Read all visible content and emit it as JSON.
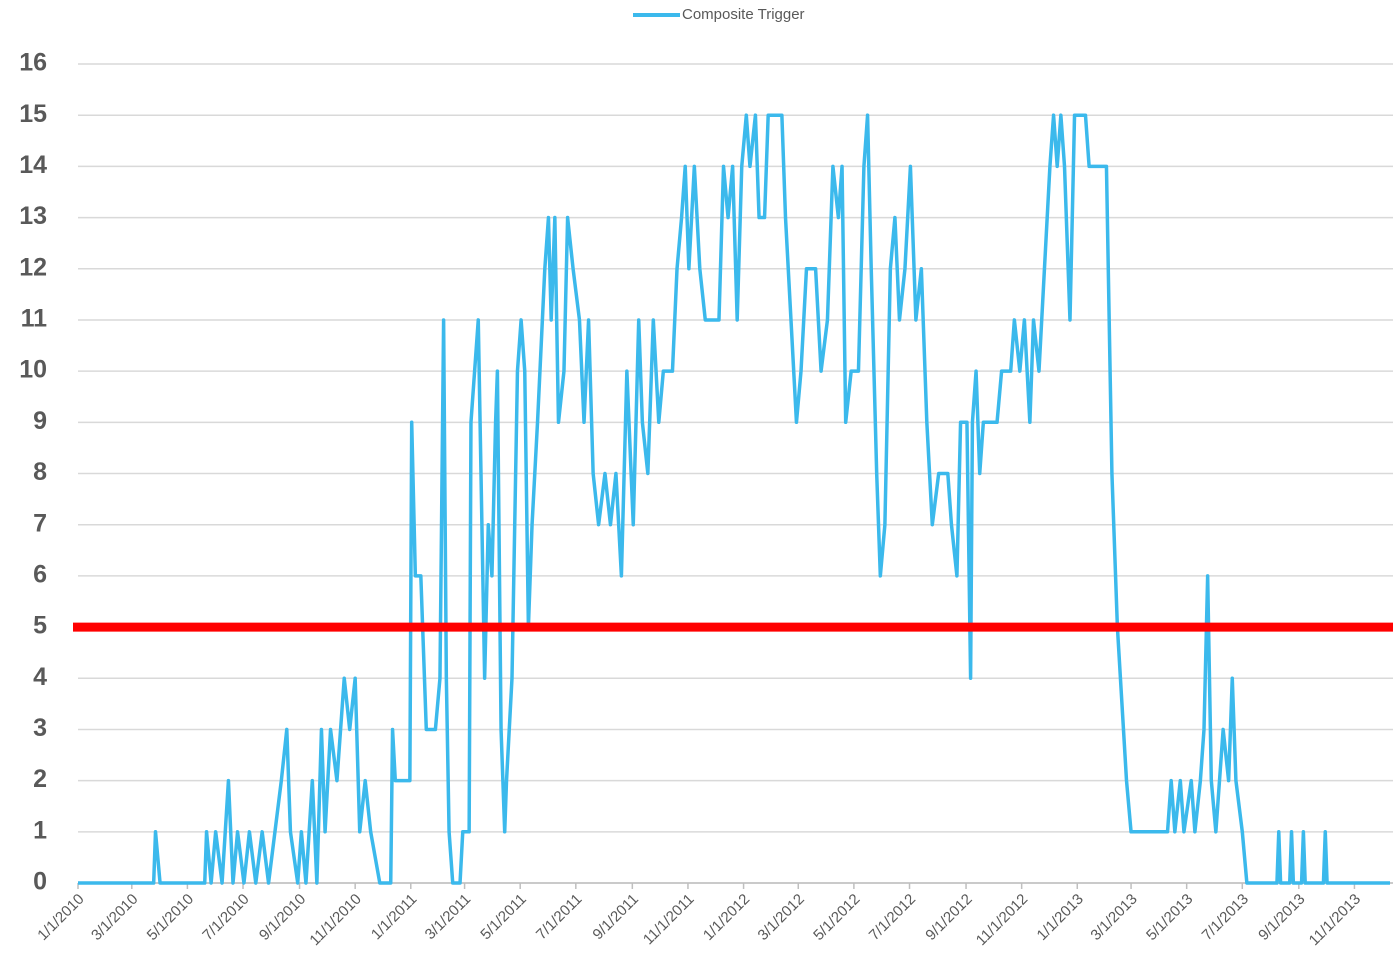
{
  "chart_data": {
    "type": "line",
    "legend": "top",
    "x": [
      "2010-01-01",
      "2010-03-25",
      "2010-03-27",
      "2010-04-01",
      "2010-05-20",
      "2010-05-22",
      "2010-05-27",
      "2010-06-01",
      "2010-06-08",
      "2010-06-15",
      "2010-06-20",
      "2010-06-25",
      "2010-07-02",
      "2010-07-08",
      "2010-07-15",
      "2010-07-22",
      "2010-07-29",
      "2010-08-05",
      "2010-08-12",
      "2010-08-18",
      "2010-08-22",
      "2010-08-30",
      "2010-09-03",
      "2010-09-08",
      "2010-09-15",
      "2010-09-20",
      "2010-09-25",
      "2010-09-29",
      "2010-10-05",
      "2010-10-12",
      "2010-10-20",
      "2010-10-26",
      "2010-11-01",
      "2010-11-06",
      "2010-11-12",
      "2010-11-18",
      "2010-11-28",
      "2010-12-10",
      "2010-12-12",
      "2010-12-15",
      "2010-12-31",
      "2011-01-02",
      "2011-01-06",
      "2011-01-12",
      "2011-01-18",
      "2011-01-28",
      "2011-02-02",
      "2011-02-06",
      "2011-02-09",
      "2011-02-12",
      "2011-02-16",
      "2011-02-24",
      "2011-02-27",
      "2011-03-06",
      "2011-03-08",
      "2011-03-12",
      "2011-03-16",
      "2011-03-19",
      "2011-03-23",
      "2011-03-27",
      "2011-03-31",
      "2011-04-04",
      "2011-04-06",
      "2011-04-10",
      "2011-04-14",
      "2011-04-16",
      "2011-04-22",
      "2011-04-28",
      "2011-05-02",
      "2011-05-06",
      "2011-05-10",
      "2011-05-14",
      "2011-05-20",
      "2011-05-28",
      "2011-06-01",
      "2011-06-04",
      "2011-06-08",
      "2011-06-12",
      "2011-06-18",
      "2011-06-22",
      "2011-06-28",
      "2011-07-05",
      "2011-07-10",
      "2011-07-15",
      "2011-07-20",
      "2011-07-26",
      "2011-08-02",
      "2011-08-08",
      "2011-08-14",
      "2011-08-20",
      "2011-08-26",
      "2011-09-02",
      "2011-09-08",
      "2011-09-12",
      "2011-09-18",
      "2011-09-24",
      "2011-09-30",
      "2011-10-05",
      "2011-10-15",
      "2011-10-20",
      "2011-10-25",
      "2011-10-29",
      "2011-11-02",
      "2011-11-08",
      "2011-11-14",
      "2011-11-20",
      "2011-12-05",
      "2011-12-10",
      "2011-12-15",
      "2011-12-20",
      "2011-12-25",
      "2011-12-30",
      "2012-01-04",
      "2012-01-08",
      "2012-01-14",
      "2012-01-18",
      "2012-01-24",
      "2012-01-28",
      "2012-02-12",
      "2012-02-16",
      "2012-02-22",
      "2012-02-28",
      "2012-03-04",
      "2012-03-10",
      "2012-03-20",
      "2012-03-26",
      "2012-04-02",
      "2012-04-08",
      "2012-04-14",
      "2012-04-18",
      "2012-04-22",
      "2012-04-28",
      "2012-05-06",
      "2012-05-12",
      "2012-05-16",
      "2012-05-20",
      "2012-05-26",
      "2012-05-30",
      "2012-06-04",
      "2012-06-10",
      "2012-06-15",
      "2012-06-20",
      "2012-06-26",
      "2012-07-02",
      "2012-07-08",
      "2012-07-14",
      "2012-07-20",
      "2012-07-26",
      "2012-08-02",
      "2012-08-12",
      "2012-08-16",
      "2012-08-22",
      "2012-08-26",
      "2012-09-02",
      "2012-09-06",
      "2012-09-08",
      "2012-09-12",
      "2012-09-16",
      "2012-09-20",
      "2012-10-05",
      "2012-10-10",
      "2012-10-20",
      "2012-10-24",
      "2012-10-30",
      "2012-11-04",
      "2012-11-10",
      "2012-11-14",
      "2012-11-20",
      "2012-11-26",
      "2012-12-02",
      "2012-12-06",
      "2012-12-10",
      "2012-12-14",
      "2012-12-18",
      "2012-12-24",
      "2012-12-29",
      "2013-01-10",
      "2013-01-14",
      "2013-02-02",
      "2013-02-08",
      "2013-02-14",
      "2013-02-24",
      "2013-03-01",
      "2013-04-10",
      "2013-04-14",
      "2013-04-18",
      "2013-04-24",
      "2013-04-28",
      "2013-05-06",
      "2013-05-10",
      "2013-05-16",
      "2013-05-20",
      "2013-05-24",
      "2013-05-28",
      "2013-06-02",
      "2013-06-10",
      "2013-06-16",
      "2013-06-20",
      "2013-06-24",
      "2013-07-01",
      "2013-07-06",
      "2013-08-08",
      "2013-08-10",
      "2013-08-12",
      "2013-08-22",
      "2013-08-24",
      "2013-08-26",
      "2013-09-04",
      "2013-09-06",
      "2013-09-08",
      "2013-09-28",
      "2013-09-30",
      "2013-10-02",
      "2013-12-10"
    ],
    "series": [
      {
        "name": "Composite Trigger",
        "color": "#3bb9ec",
        "values": [
          0,
          0,
          1,
          0,
          0,
          1,
          0,
          1,
          0,
          2,
          0,
          1,
          0,
          1,
          0,
          1,
          0,
          1,
          2,
          3,
          1,
          0,
          1,
          0,
          2,
          0,
          3,
          1,
          3,
          2,
          4,
          3,
          4,
          1,
          2,
          1,
          0,
          0,
          3,
          2,
          2,
          9,
          6,
          6,
          3,
          3,
          4,
          11,
          4,
          1,
          0,
          0,
          1,
          1,
          9,
          10,
          11,
          8,
          4,
          7,
          6,
          9,
          10,
          3,
          1,
          2,
          4,
          10,
          11,
          10,
          5,
          7,
          9,
          12,
          13,
          11,
          13,
          9,
          10,
          13,
          12,
          11,
          9,
          11,
          8,
          7,
          8,
          7,
          8,
          6,
          10,
          7,
          11,
          9,
          8,
          11,
          9,
          10,
          10,
          12,
          13,
          14,
          12,
          14,
          12,
          11,
          11,
          14,
          13,
          14,
          11,
          14,
          15,
          14,
          15,
          13,
          13,
          15,
          15,
          13,
          11,
          9,
          10,
          12,
          12,
          10,
          11,
          14,
          13,
          14,
          9,
          10,
          10,
          14,
          15,
          12,
          8,
          6,
          7,
          12,
          13,
          11,
          12,
          14,
          11,
          12,
          9,
          7,
          8,
          8,
          7,
          6,
          9,
          9,
          4,
          9,
          10,
          8,
          9,
          9,
          10,
          10,
          11,
          10,
          11,
          9,
          11,
          10,
          12,
          14,
          15,
          14,
          15,
          14,
          11,
          15,
          15,
          14,
          14,
          8,
          5,
          2,
          1,
          1,
          2,
          1,
          2,
          1,
          2,
          1,
          2,
          3,
          6,
          2,
          1,
          3,
          2,
          4,
          2,
          1,
          0,
          0,
          1,
          0,
          0,
          1,
          0,
          0,
          1,
          0,
          0,
          1,
          0,
          0
        ]
      }
    ],
    "xlim": [
      "2010-01-01",
      "2013-12-10"
    ],
    "xticks": [
      {
        "value": "2010-01-01",
        "label": "1/1/2010"
      },
      {
        "value": "2010-03-01",
        "label": "3/1/2010"
      },
      {
        "value": "2010-05-01",
        "label": "5/1/2010"
      },
      {
        "value": "2010-07-01",
        "label": "7/1/2010"
      },
      {
        "value": "2010-09-01",
        "label": "9/1/2010"
      },
      {
        "value": "2010-11-01",
        "label": "11/1/2010"
      },
      {
        "value": "2011-01-01",
        "label": "1/1/2011"
      },
      {
        "value": "2011-03-01",
        "label": "3/1/2011"
      },
      {
        "value": "2011-05-01",
        "label": "5/1/2011"
      },
      {
        "value": "2011-07-01",
        "label": "7/1/2011"
      },
      {
        "value": "2011-09-01",
        "label": "9/1/2011"
      },
      {
        "value": "2011-11-01",
        "label": "11/1/2011"
      },
      {
        "value": "2012-01-01",
        "label": "1/1/2012"
      },
      {
        "value": "2012-03-01",
        "label": "3/1/2012"
      },
      {
        "value": "2012-05-01",
        "label": "5/1/2012"
      },
      {
        "value": "2012-07-01",
        "label": "7/1/2012"
      },
      {
        "value": "2012-09-01",
        "label": "9/1/2012"
      },
      {
        "value": "2012-11-01",
        "label": "11/1/2012"
      },
      {
        "value": "2013-01-01",
        "label": "1/1/2013"
      },
      {
        "value": "2013-03-01",
        "label": "3/1/2013"
      },
      {
        "value": "2013-05-01",
        "label": "5/1/2013"
      },
      {
        "value": "2013-07-01",
        "label": "7/1/2013"
      },
      {
        "value": "2013-09-01",
        "label": "9/1/2013"
      },
      {
        "value": "2013-11-01",
        "label": "11/1/2013"
      }
    ],
    "ylim": [
      0,
      16
    ],
    "yticks": [
      0,
      1,
      2,
      3,
      4,
      5,
      6,
      7,
      8,
      9,
      10,
      11,
      12,
      13,
      14,
      15,
      16
    ],
    "grid": true,
    "reference_lines": [
      {
        "value": 5,
        "color": "#ff0000"
      }
    ]
  }
}
